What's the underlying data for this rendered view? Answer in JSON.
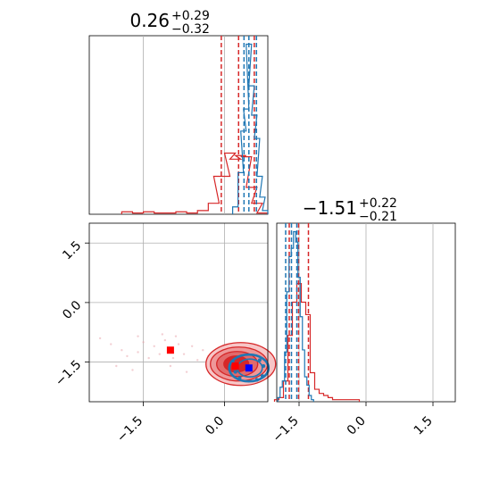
{
  "chart_data": {
    "type": "corner",
    "colors": {
      "primary": "#d62728",
      "secondary": "#1f77b4",
      "grid": "#b0b0b0",
      "marker_red": "#ff0000",
      "marker_blue": "#0000ff"
    },
    "grid": true,
    "panels": [
      {
        "id": "p1-histogram",
        "type": "histogram",
        "title": {
          "main": "0.26",
          "sup": "+0.29",
          "sub": "−0.32"
        },
        "xlim": [
          -2.5,
          0.8
        ],
        "x_gridlines": [
          -1.5,
          0.0
        ],
        "series": [
          {
            "name": "",
            "color": "#d62728",
            "x": [
              -1.8,
              -1.6,
              -1.4,
              -1.2,
              -1.0,
              -0.8,
              -0.6,
              -0.4,
              -0.2,
              -0.1,
              0.0,
              0.1,
              0.2,
              0.3,
              0.4,
              0.5,
              0.6,
              0.7
            ],
            "values": [
              2,
              1,
              2,
              1,
              1,
              2,
              1,
              3,
              9,
              31,
              31,
              50,
              45,
              48,
              47,
              22,
              9,
              1
            ],
            "quantiles": [
              -0.06,
              0.26,
              0.55
            ]
          },
          {
            "name": "",
            "color": "#1f77b4",
            "x": [
              0.2,
              0.3,
              0.35,
              0.4,
              0.45,
              0.5,
              0.55,
              0.6,
              0.65,
              0.7,
              0.75
            ],
            "values": [
              6,
              34,
              68,
              86,
              139,
              105,
              81,
              62,
              31,
              14,
              3
            ],
            "quantiles": [
              0.36,
              0.45,
              0.59
            ]
          }
        ]
      },
      {
        "id": "p2-contour",
        "type": "contour",
        "xlim": [
          -2.5,
          0.8
        ],
        "ylim": [
          -2.5,
          2.0
        ],
        "xticks": [
          "−1.5",
          "0.0"
        ],
        "xtick_values": [
          -1.5,
          0.0
        ],
        "yticks": [
          "1.5",
          "0.0",
          "−1.5"
        ],
        "ytick_values": [
          1.5,
          0.0,
          -1.5
        ],
        "markers": [
          {
            "x": -1.0,
            "y": -1.2,
            "color": "#ff0000"
          },
          {
            "x": 0.2,
            "y": -1.6,
            "color": "#ff0000"
          },
          {
            "x": 0.45,
            "y": -1.65,
            "color": "#0000ff"
          }
        ]
      },
      {
        "id": "p3-histogram",
        "type": "histogram",
        "title": {
          "main": "−1.51",
          "sup": "+0.22",
          "sub": "−0.21"
        },
        "xlim": [
          -2.0,
          2.0
        ],
        "xticks": [
          "−1.5",
          "0.0",
          "1.5"
        ],
        "xtick_values": [
          -1.5,
          0.0,
          1.5
        ],
        "series": [
          {
            "name": "",
            "color": "#d62728",
            "x": [
              -2.0,
              -1.9,
              -1.8,
              -1.7,
              -1.6,
              -1.5,
              -1.4,
              -1.3,
              -1.2,
              -1.1,
              -1.0,
              -0.9,
              -0.8,
              -0.7,
              -0.6,
              -0.5,
              -0.4,
              -0.3,
              -0.2
            ],
            "values": [
              1,
              2,
              10,
              32,
              48,
              57,
              48,
              42,
              14,
              6,
              4,
              3,
              2,
              1,
              1,
              1,
              1,
              1,
              1
            ],
            "quantiles": [
              -1.72,
              -1.51,
              -1.29
            ]
          },
          {
            "name": "",
            "color": "#1f77b4",
            "x": [
              -1.95,
              -1.9,
              -1.85,
              -1.8,
              -1.75,
              -1.7,
              -1.65,
              -1.6,
              -1.55,
              -1.5,
              -1.45,
              -1.4,
              -1.35,
              -1.3,
              -1.25,
              -1.2
            ],
            "values": [
              2,
              7,
              10,
              24,
              53,
              70,
              74,
              82,
              77,
              60,
              41,
              25,
              12,
              8,
              3,
              1
            ],
            "quantiles": [
              -1.8,
              -1.67,
              -1.55
            ]
          }
        ]
      }
    ]
  }
}
